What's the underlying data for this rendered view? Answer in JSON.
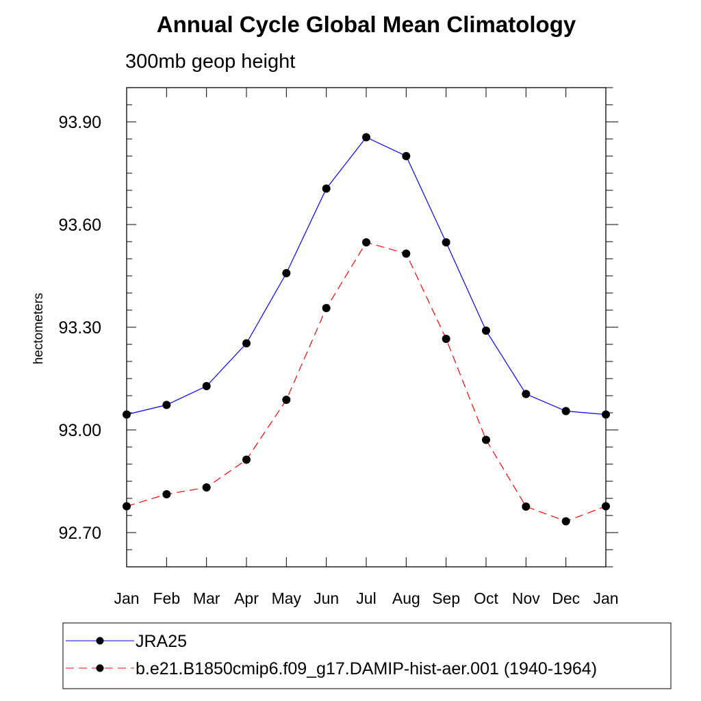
{
  "chart_data": {
    "type": "line",
    "title": "Annual Cycle Global Mean Climatology",
    "subtitle": "300mb geop height",
    "xlabel": "",
    "ylabel": "hectometers",
    "categories": [
      "Jan",
      "Feb",
      "Mar",
      "Apr",
      "May",
      "Jun",
      "Jul",
      "Aug",
      "Sep",
      "Oct",
      "Nov",
      "Dec",
      "Jan"
    ],
    "yticks": [
      "92.70",
      "93.00",
      "93.30",
      "93.60",
      "93.90"
    ],
    "ytick_values": [
      92.7,
      93.0,
      93.3,
      93.6,
      93.9
    ],
    "ylim": [
      92.6,
      94.0
    ],
    "grid": false,
    "legend_position": "bottom",
    "series": [
      {
        "name": "JRA25",
        "color": "#0000ff",
        "dashed": false,
        "values": [
          93.045,
          93.073,
          93.128,
          93.253,
          93.458,
          93.705,
          93.855,
          93.8,
          93.548,
          93.29,
          93.105,
          93.055,
          93.045
        ]
      },
      {
        "name": "b.e21.B1850cmip6.f09_g17.DAMIP-hist-aer.001 (1940-1964)",
        "color": "#ff0000",
        "dashed": true,
        "values": [
          92.777,
          92.812,
          92.832,
          92.913,
          93.088,
          93.356,
          93.548,
          93.515,
          93.266,
          92.971,
          92.776,
          92.733,
          92.777
        ]
      }
    ]
  }
}
